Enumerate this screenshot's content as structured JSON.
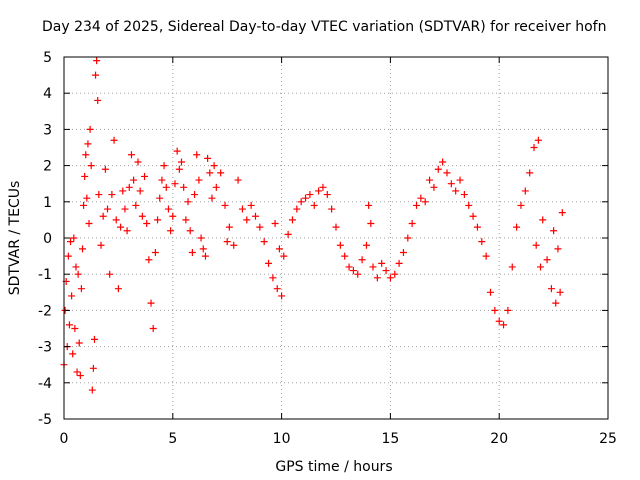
{
  "chart_data": {
    "type": "scatter",
    "title": "Day 234 of 2025, Sidereal Day-to-day VTEC variation (SDTVAR) for receiver hofn",
    "xlabel": "GPS time / hours",
    "ylabel": "SDTVAR / TECUs",
    "xlim": [
      0,
      25
    ],
    "ylim": [
      -5,
      5
    ],
    "xticks": [
      0,
      5,
      10,
      15,
      20,
      25
    ],
    "yticks": [
      -5,
      -4,
      -3,
      -2,
      -1,
      0,
      1,
      2,
      3,
      4,
      5
    ],
    "grid": true,
    "marker": "+",
    "color": "#ff0000",
    "series": [
      {
        "name": "hofn",
        "points": [
          [
            0.0,
            -3.5
          ],
          [
            0.05,
            -2.0
          ],
          [
            0.1,
            -1.2
          ],
          [
            0.15,
            -3.0
          ],
          [
            0.2,
            -0.5
          ],
          [
            0.25,
            -2.4
          ],
          [
            0.3,
            -0.1
          ],
          [
            0.35,
            -1.6
          ],
          [
            0.4,
            -3.2
          ],
          [
            0.45,
            0.0
          ],
          [
            0.5,
            -2.5
          ],
          [
            0.55,
            -0.8
          ],
          [
            0.6,
            -3.7
          ],
          [
            0.65,
            -1.0
          ],
          [
            0.7,
            -2.9
          ],
          [
            0.75,
            -3.8
          ],
          [
            0.8,
            -1.4
          ],
          [
            0.85,
            -0.3
          ],
          [
            0.9,
            0.9
          ],
          [
            0.95,
            1.7
          ],
          [
            1.0,
            2.3
          ],
          [
            1.05,
            1.1
          ],
          [
            1.1,
            2.6
          ],
          [
            1.15,
            0.4
          ],
          [
            1.2,
            3.0
          ],
          [
            1.25,
            2.0
          ],
          [
            1.3,
            -4.2
          ],
          [
            1.35,
            -3.6
          ],
          [
            1.4,
            -2.8
          ],
          [
            1.45,
            4.5
          ],
          [
            1.5,
            4.9
          ],
          [
            1.55,
            3.8
          ],
          [
            1.6,
            1.2
          ],
          [
            1.7,
            -0.2
          ],
          [
            1.8,
            0.6
          ],
          [
            1.9,
            1.9
          ],
          [
            2.0,
            0.8
          ],
          [
            2.1,
            -1.0
          ],
          [
            2.2,
            1.2
          ],
          [
            2.3,
            2.7
          ],
          [
            2.4,
            0.5
          ],
          [
            2.5,
            -1.4
          ],
          [
            2.6,
            0.3
          ],
          [
            2.7,
            1.3
          ],
          [
            2.8,
            0.8
          ],
          [
            2.9,
            0.2
          ],
          [
            3.0,
            1.4
          ],
          [
            3.1,
            2.3
          ],
          [
            3.2,
            1.6
          ],
          [
            3.3,
            0.9
          ],
          [
            3.4,
            2.1
          ],
          [
            3.5,
            1.3
          ],
          [
            3.6,
            0.6
          ],
          [
            3.7,
            1.7
          ],
          [
            3.8,
            0.4
          ],
          [
            3.9,
            -0.6
          ],
          [
            4.0,
            -1.8
          ],
          [
            4.1,
            -2.5
          ],
          [
            4.2,
            -0.4
          ],
          [
            4.3,
            0.5
          ],
          [
            4.4,
            1.1
          ],
          [
            4.5,
            1.6
          ],
          [
            4.6,
            2.0
          ],
          [
            4.7,
            1.4
          ],
          [
            4.8,
            0.8
          ],
          [
            4.9,
            0.2
          ],
          [
            5.0,
            0.6
          ],
          [
            5.1,
            1.5
          ],
          [
            5.2,
            2.4
          ],
          [
            5.3,
            1.9
          ],
          [
            5.4,
            2.1
          ],
          [
            5.5,
            1.4
          ],
          [
            5.6,
            0.5
          ],
          [
            5.7,
            1.0
          ],
          [
            5.8,
            0.2
          ],
          [
            5.9,
            -0.4
          ],
          [
            6.0,
            1.2
          ],
          [
            6.1,
            2.3
          ],
          [
            6.2,
            1.6
          ],
          [
            6.3,
            0.0
          ],
          [
            6.4,
            -0.3
          ],
          [
            6.5,
            -0.5
          ],
          [
            6.6,
            2.2
          ],
          [
            6.7,
            1.8
          ],
          [
            6.8,
            1.1
          ],
          [
            6.9,
            2.0
          ],
          [
            7.0,
            1.4
          ],
          [
            7.2,
            1.8
          ],
          [
            7.4,
            0.9
          ],
          [
            7.5,
            -0.1
          ],
          [
            7.6,
            0.3
          ],
          [
            7.8,
            -0.2
          ],
          [
            8.0,
            1.6
          ],
          [
            8.2,
            0.8
          ],
          [
            8.4,
            0.5
          ],
          [
            8.6,
            0.9
          ],
          [
            8.8,
            0.6
          ],
          [
            9.0,
            0.3
          ],
          [
            9.2,
            -0.1
          ],
          [
            9.4,
            -0.7
          ],
          [
            9.6,
            -1.1
          ],
          [
            9.8,
            -1.4
          ],
          [
            10.0,
            -1.6
          ],
          [
            9.7,
            0.4
          ],
          [
            9.9,
            -0.3
          ],
          [
            10.1,
            -0.5
          ],
          [
            10.3,
            0.1
          ],
          [
            10.5,
            0.5
          ],
          [
            10.7,
            0.8
          ],
          [
            10.9,
            1.0
          ],
          [
            11.1,
            1.1
          ],
          [
            11.3,
            1.2
          ],
          [
            11.5,
            0.9
          ],
          [
            11.7,
            1.3
          ],
          [
            11.9,
            1.4
          ],
          [
            12.1,
            1.2
          ],
          [
            12.3,
            0.8
          ],
          [
            12.5,
            0.3
          ],
          [
            12.7,
            -0.2
          ],
          [
            12.9,
            -0.5
          ],
          [
            13.1,
            -0.8
          ],
          [
            13.3,
            -0.9
          ],
          [
            13.5,
            -1.0
          ],
          [
            13.7,
            -0.6
          ],
          [
            13.9,
            -0.2
          ],
          [
            14.0,
            0.9
          ],
          [
            14.1,
            0.4
          ],
          [
            14.2,
            -0.8
          ],
          [
            14.4,
            -1.1
          ],
          [
            14.6,
            -0.7
          ],
          [
            14.8,
            -0.9
          ],
          [
            15.0,
            -1.1
          ],
          [
            15.2,
            -1.0
          ],
          [
            15.4,
            -0.7
          ],
          [
            15.6,
            -0.4
          ],
          [
            15.8,
            0.0
          ],
          [
            16.0,
            0.4
          ],
          [
            16.2,
            0.9
          ],
          [
            16.4,
            1.1
          ],
          [
            16.6,
            1.0
          ],
          [
            16.8,
            1.6
          ],
          [
            17.0,
            1.4
          ],
          [
            17.2,
            1.9
          ],
          [
            17.4,
            2.1
          ],
          [
            17.6,
            1.8
          ],
          [
            17.8,
            1.5
          ],
          [
            18.0,
            1.3
          ],
          [
            18.2,
            1.6
          ],
          [
            18.4,
            1.2
          ],
          [
            18.6,
            0.9
          ],
          [
            18.8,
            0.6
          ],
          [
            19.0,
            0.3
          ],
          [
            19.2,
            -0.1
          ],
          [
            19.4,
            -0.5
          ],
          [
            19.6,
            -1.5
          ],
          [
            19.8,
            -2.0
          ],
          [
            20.0,
            -2.3
          ],
          [
            20.2,
            -2.4
          ],
          [
            20.4,
            -2.0
          ],
          [
            20.6,
            -0.8
          ],
          [
            20.8,
            0.3
          ],
          [
            21.0,
            0.9
          ],
          [
            21.2,
            1.3
          ],
          [
            21.4,
            1.8
          ],
          [
            21.6,
            2.5
          ],
          [
            21.8,
            2.7
          ],
          [
            22.0,
            0.5
          ],
          [
            22.2,
            -0.6
          ],
          [
            22.4,
            -1.4
          ],
          [
            22.6,
            -1.8
          ],
          [
            22.8,
            -1.5
          ],
          [
            22.9,
            0.7
          ],
          [
            22.7,
            -0.3
          ],
          [
            22.5,
            0.2
          ],
          [
            21.9,
            -0.8
          ],
          [
            21.7,
            -0.2
          ]
        ]
      }
    ]
  }
}
